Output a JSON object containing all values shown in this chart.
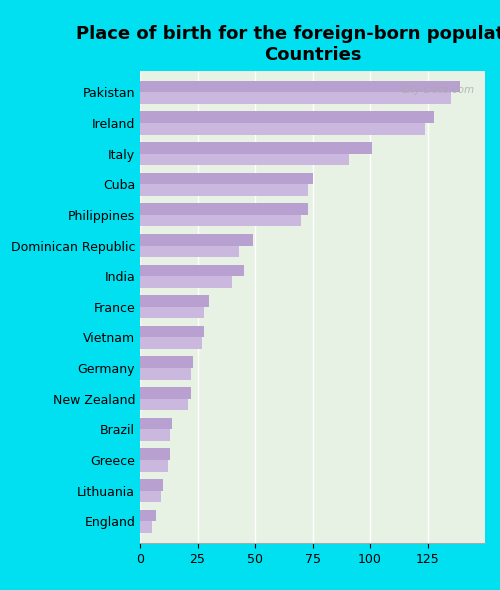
{
  "title": "Place of birth for the foreign-born population -\nCountries",
  "categories": [
    "Pakistan",
    "Ireland",
    "Italy",
    "Cuba",
    "Philippines",
    "Dominican Republic",
    "India",
    "France",
    "Vietnam",
    "Germany",
    "New Zealand",
    "Brazil",
    "Greece",
    "Lithuania",
    "England"
  ],
  "values1": [
    139,
    128,
    101,
    75,
    73,
    49,
    45,
    30,
    28,
    23,
    22,
    14,
    13,
    10,
    7
  ],
  "values2": [
    135,
    124,
    91,
    73,
    70,
    43,
    40,
    28,
    27,
    22,
    21,
    13,
    12,
    9,
    5
  ],
  "bar_color1": "#b8a0d0",
  "bar_color2": "#cbb8de",
  "bg_color": "#00e0f0",
  "plot_bg": "#e8f2e4",
  "title_fontsize": 13,
  "label_fontsize": 9,
  "tick_fontsize": 9,
  "xlim": [
    0,
    150
  ],
  "watermark": "City-Data.com"
}
